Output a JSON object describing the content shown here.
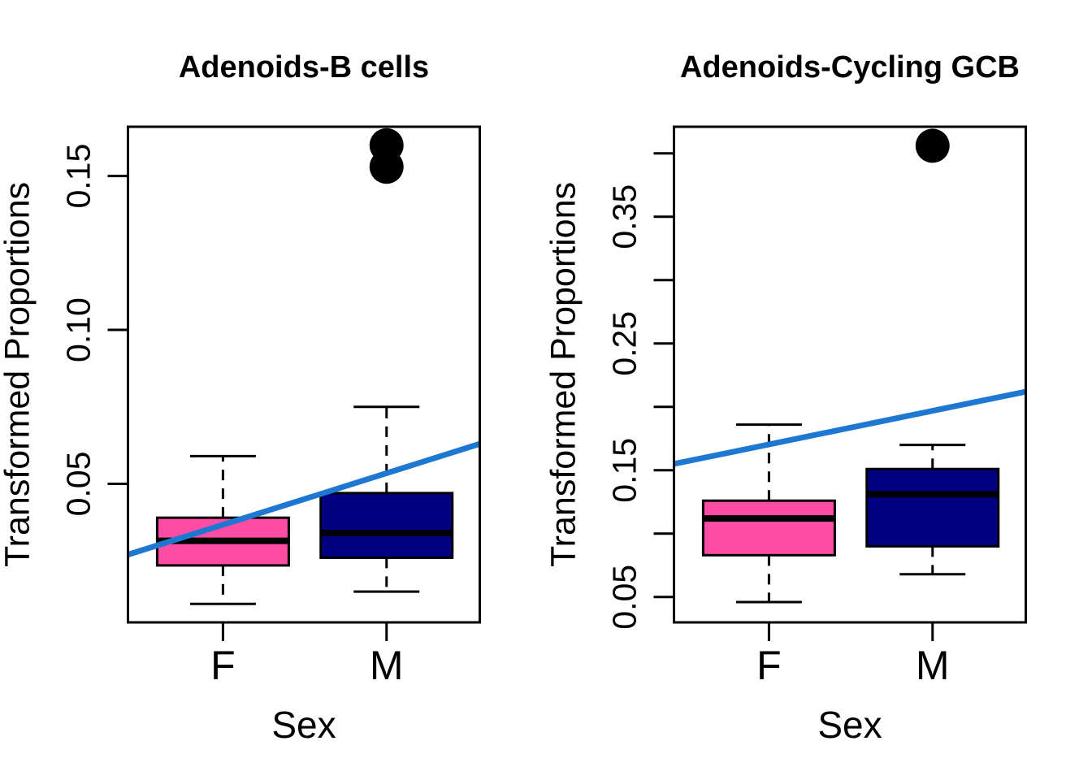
{
  "figure": {
    "background": "#FFFFFF",
    "colors": {
      "female_box_fill": "#FF4DA6",
      "male_box_fill": "#000080",
      "trend_line": "#1E78D2",
      "outline": "#000000",
      "text": "#000000"
    }
  },
  "chart_data": [
    {
      "type": "boxplot",
      "title": "Adenoids-B cells",
      "xlabel": "Sex",
      "ylabel": "Transformed Proportions",
      "categories": [
        "F",
        "M"
      ],
      "ylim": [
        0.005,
        0.166
      ],
      "grid": false,
      "yticks": [
        {
          "value": 0.05,
          "label": "0.05"
        },
        {
          "value": 0.1,
          "label": "0.10"
        },
        {
          "value": 0.15,
          "label": "0.15"
        }
      ],
      "boxes": [
        {
          "category": "F",
          "fill": "#FF4DA6",
          "lower_whisker": 0.011,
          "q1": 0.0235,
          "median": 0.0315,
          "q3": 0.039,
          "upper_whisker": 0.059,
          "outliers": []
        },
        {
          "category": "M",
          "fill": "#000080",
          "lower_whisker": 0.015,
          "q1": 0.026,
          "median": 0.034,
          "q3": 0.047,
          "upper_whisker": 0.075,
          "outliers": [
            0.153,
            0.16
          ]
        }
      ],
      "trend_line": {
        "color": "#1E78D2",
        "y_at_left_edge": 0.027,
        "y_at_right_edge": 0.063
      }
    },
    {
      "type": "boxplot",
      "title": "Adenoids-Cycling GCB",
      "xlabel": "Sex",
      "ylabel": "Transformed Proportions",
      "categories": [
        "F",
        "M"
      ],
      "ylim": [
        0.03,
        0.421
      ],
      "grid": false,
      "yticks": [
        {
          "value": 0.05,
          "label": "0.05"
        },
        {
          "value": 0.1,
          "label": ""
        },
        {
          "value": 0.15,
          "label": "0.15"
        },
        {
          "value": 0.2,
          "label": ""
        },
        {
          "value": 0.25,
          "label": "0.25"
        },
        {
          "value": 0.3,
          "label": ""
        },
        {
          "value": 0.35,
          "label": "0.35"
        },
        {
          "value": 0.4,
          "label": ""
        }
      ],
      "boxes": [
        {
          "category": "F",
          "fill": "#FF4DA6",
          "lower_whisker": 0.046,
          "q1": 0.083,
          "median": 0.112,
          "q3": 0.126,
          "upper_whisker": 0.186,
          "outliers": []
        },
        {
          "category": "M",
          "fill": "#000080",
          "lower_whisker": 0.068,
          "q1": 0.09,
          "median": 0.131,
          "q3": 0.151,
          "upper_whisker": 0.17,
          "outliers": [
            0.406
          ]
        }
      ],
      "trend_line": {
        "color": "#1E78D2",
        "y_at_left_edge": 0.155,
        "y_at_right_edge": 0.212
      }
    }
  ]
}
